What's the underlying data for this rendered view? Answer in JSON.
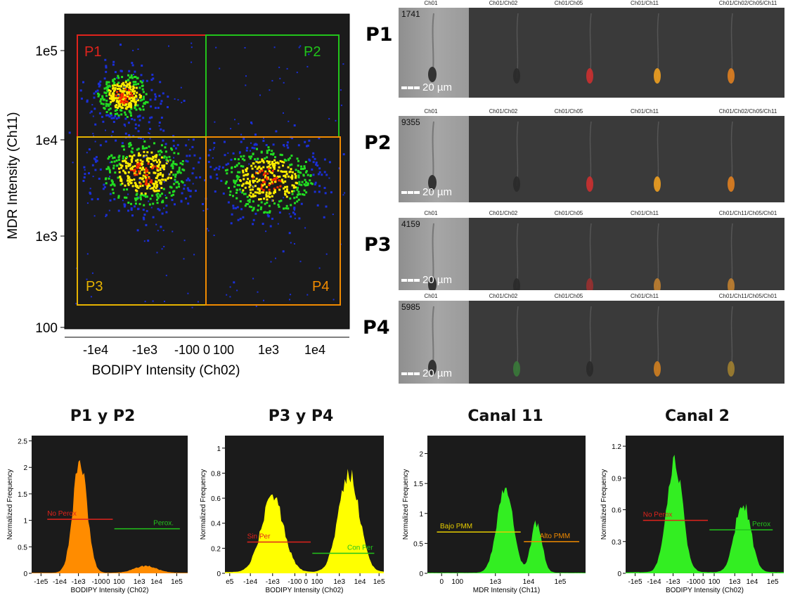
{
  "scatter": {
    "gates": [
      {
        "name": "P1",
        "color": "#e0231c"
      },
      {
        "name": "P2",
        "color": "#22c41b"
      },
      {
        "name": "P3",
        "color": "#e6b200"
      },
      {
        "name": "P4",
        "color": "#f08a00"
      }
    ],
    "yticks": [
      "1e5",
      "1e4",
      "1e3",
      "100"
    ],
    "xticks": [
      "-1e4",
      "-1e3",
      "-100",
      "0",
      "100",
      "1e3",
      "1e4"
    ],
    "xlabel": "BODIPY Intensity (Ch02)",
    "ylabel": "MDR Intensity (Ch11)"
  },
  "image_rows": [
    {
      "label": "P1",
      "count": "1741",
      "scale": "20 µm",
      "channels": [
        "Ch01",
        "Ch01/Ch02",
        "Ch01/Ch05",
        "Ch01/Ch11",
        "Ch01/Ch02/Ch05/Ch11"
      ]
    },
    {
      "label": "P2",
      "count": "9355",
      "scale": "20 µm",
      "channels": [
        "Ch01",
        "Ch01/Ch02",
        "Ch01/Ch05",
        "Ch01/Ch11",
        "Ch01/Ch02/Ch05/Ch11"
      ]
    },
    {
      "label": "P3",
      "count": "4159",
      "scale": "20 µm",
      "channels": [
        "Ch01",
        "Ch01/Ch02",
        "Ch01/Ch05",
        "Ch01/Ch11",
        "Ch01/Ch11/Ch05/Ch01"
      ]
    },
    {
      "label": "P4",
      "count": "5985",
      "scale": "20 µm",
      "channels": [
        "Ch01",
        "Ch01/Ch02",
        "Ch01/Ch05",
        "Ch01/Ch11",
        "Ch01/Ch11/Ch05/Ch01"
      ]
    }
  ],
  "histograms": [
    {
      "title": "P1 y P2",
      "ylabel": "Normalized Frequency",
      "xlabel": "BODIPY Intensity (Ch02)",
      "color": "#ff8c00",
      "yticks": [
        "0",
        "0.5",
        "1",
        "1.5",
        "2",
        "2.5"
      ],
      "xticks": [
        "-1e5",
        "-1e4",
        "-1e3",
        "-100",
        "0",
        "100",
        "1e3",
        "1e4",
        "1e5"
      ],
      "gates": [
        {
          "label": "No Perox",
          "color": "#e0231c",
          "y": 1.02
        },
        {
          "label": "Perox.",
          "color": "#22c41b",
          "y": 0.84
        }
      ]
    },
    {
      "title": "P3 y P4",
      "ylabel": "Normalized Frequency",
      "xlabel": "BODIPY Intensity (Ch02)",
      "color": "#ffff00",
      "yticks": [
        "0",
        "0.2",
        "0.4",
        "0.6",
        "0.8",
        "1"
      ],
      "xticks": [
        "e5",
        "-1e4",
        "-1e3",
        "-100",
        "0",
        "100",
        "1e3",
        "1e4",
        "1e5"
      ],
      "gates": [
        {
          "label": "Sin Per",
          "color": "#e0231c",
          "y": 0.25
        },
        {
          "label": "Con Per",
          "color": "#22c41b",
          "y": 0.16
        }
      ]
    },
    {
      "title": "Canal 11",
      "ylabel": "Normalized Frequency",
      "xlabel": "MDR Intensity (Ch11)",
      "color": "#33ee22",
      "yticks": [
        "0",
        "0.5",
        "1",
        "1.5",
        "2"
      ],
      "xticks": [
        "0",
        "100",
        "1e3",
        "1e4",
        "1e5"
      ],
      "gates": [
        {
          "label": "Bajo PMM",
          "color": "#e6cc00",
          "y": 0.69
        },
        {
          "label": "Alto PMM",
          "color": "#f08a00",
          "y": 0.53
        }
      ]
    },
    {
      "title": "Canal 2",
      "ylabel": "Normalized Frequency",
      "xlabel": "BODIPY Intensity (Ch02)",
      "color": "#33ee22",
      "yticks": [
        "0",
        "0.3",
        "0.6",
        "0.9",
        "1.2"
      ],
      "xticks": [
        "-1e5",
        "-1e4",
        "-1e3",
        "-100",
        "0",
        "100",
        "1e3",
        "1e4",
        "1e5"
      ],
      "gates": [
        {
          "label": "No Perox",
          "color": "#e0231c",
          "y": 0.5
        },
        {
          "label": "Perox",
          "color": "#22c41b",
          "y": 0.41
        }
      ]
    }
  ],
  "chart_data": [
    {
      "type": "scatter",
      "title": "",
      "xlabel": "BODIPY Intensity (Ch02)",
      "ylabel": "MDR Intensity (Ch11)",
      "x_scale": "biexponential",
      "y_scale": "log",
      "populations": [
        {
          "gate": "P1",
          "x_center": -300,
          "y_center": 30000
        },
        {
          "gate": "P3",
          "x_center": -300,
          "y_center": 4500
        },
        {
          "gate": "P4",
          "x_center": 1500,
          "y_center": 4000
        }
      ],
      "gate_bounds": {
        "x_split": 0,
        "y_split": 10000
      }
    },
    {
      "type": "area",
      "title": "P1 y P2",
      "xlabel": "BODIPY Intensity (Ch02)",
      "ylabel": "Normalized Frequency",
      "ylim": [
        0,
        2.6
      ],
      "peaks": [
        {
          "x": -300,
          "y": 2.1
        },
        {
          "x": 1000,
          "y": 0.13
        }
      ]
    },
    {
      "type": "area",
      "title": "P3 y P4",
      "xlabel": "BODIPY Intensity (Ch02)",
      "ylabel": "Normalized Frequency",
      "ylim": [
        0,
        1.1
      ],
      "peaks": [
        {
          "x": -1000,
          "y": 0.6
        },
        {
          "x": 1500,
          "y": 0.78
        }
      ]
    },
    {
      "type": "area",
      "title": "Canal 11",
      "xlabel": "MDR Intensity (Ch11)",
      "ylabel": "Normalized Frequency",
      "ylim": [
        0,
        2.3
      ],
      "peaks": [
        {
          "x": 4000,
          "y": 1.45
        },
        {
          "x": 30000,
          "y": 0.82
        }
      ]
    },
    {
      "type": "area",
      "title": "Canal 2",
      "xlabel": "BODIPY Intensity (Ch02)",
      "ylabel": "Normalized Frequency",
      "ylim": [
        0,
        1.3
      ],
      "peaks": [
        {
          "x": -300,
          "y": 1.05
        },
        {
          "x": 1500,
          "y": 0.67
        }
      ]
    }
  ]
}
